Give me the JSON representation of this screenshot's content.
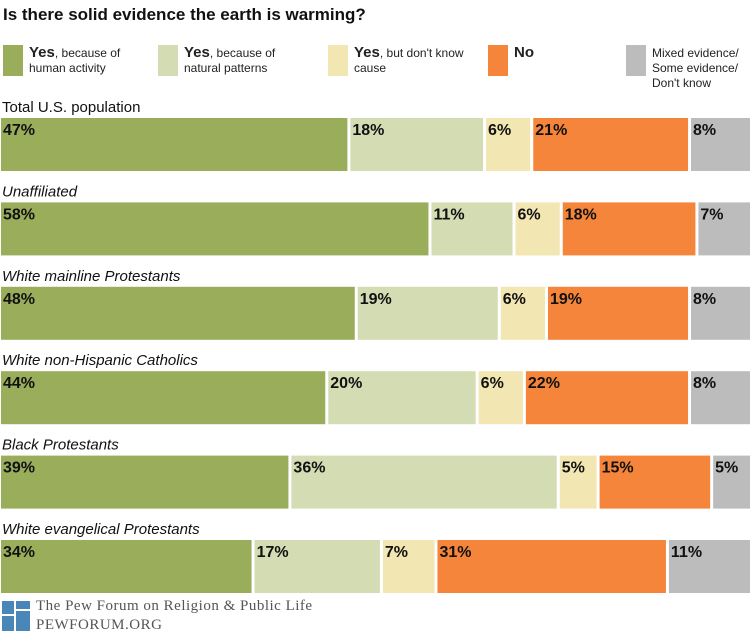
{
  "chart_data": {
    "type": "bar",
    "orientation": "horizontal",
    "stacked": true,
    "title": "Is there solid evidence the earth is warming?",
    "categories": [
      "Total U.S. population",
      "Unaffiliated",
      "White mainline Protestants",
      "White non-Hispanic Catholics",
      "Black Protestants",
      "White evangelical Protestants"
    ],
    "category_italic": [
      false,
      true,
      true,
      true,
      true,
      true
    ],
    "series": [
      {
        "name": "Yes, because of human activity",
        "legend_bold": "Yes",
        "legend_rest": ", because of human activity",
        "color": "#9aad5b",
        "values": [
          47,
          58,
          48,
          44,
          39,
          34
        ],
        "labels": [
          "47%",
          "58%",
          "48%",
          "44%",
          "39%",
          "34%"
        ]
      },
      {
        "name": "Yes, because of natural patterns",
        "legend_bold": "Yes",
        "legend_rest": ", because of natural patterns",
        "color": "#d4dcb4",
        "values": [
          18,
          11,
          19,
          20,
          36,
          17
        ],
        "labels": [
          "18%",
          "11%",
          "19%",
          "20%",
          "36%",
          "17%"
        ]
      },
      {
        "name": "Yes, but don't know cause",
        "legend_bold": "Yes",
        "legend_rest": ", but don't know cause",
        "color": "#f2e6b2",
        "values": [
          6,
          6,
          6,
          6,
          5,
          7
        ],
        "labels": [
          "6%",
          "6%",
          "6%",
          "6%",
          "5%",
          "7%"
        ]
      },
      {
        "name": "No",
        "legend_bold": "No",
        "legend_rest": "",
        "color": "#f5853a",
        "values": [
          21,
          18,
          19,
          22,
          15,
          31
        ],
        "labels": [
          "21%",
          "18%",
          "19%",
          "22%",
          "15%",
          "31%"
        ]
      },
      {
        "name": "Mixed evidence/ Some evidence/ Don't know",
        "legend_bold": "",
        "legend_rest": "Mixed evidence/ Some evidence/ Don't know",
        "color": "#bcbcbc",
        "values": [
          8,
          7,
          8,
          8,
          5,
          11
        ],
        "labels": [
          "8%",
          "7%",
          "8%",
          "8%",
          "5%",
          "11%"
        ]
      }
    ],
    "legend_position": "top",
    "grid": false
  },
  "footer": {
    "organization": "The Pew Forum on Religion & Public Life",
    "url": "PEWFORUM.ORG",
    "logo_icon": "pew-logo-icon",
    "logo_color": "#4a86b8"
  }
}
